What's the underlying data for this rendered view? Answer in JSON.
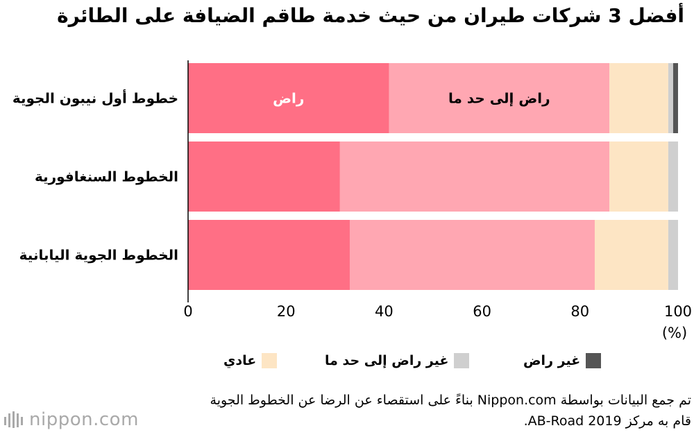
{
  "title": "أفضل 3 شركات طيران من حيث خدمة طاقم الضيافة على الطائرة",
  "chart_data": {
    "type": "bar",
    "orientation": "horizontal",
    "stacked": true,
    "title": "أفضل 3 شركات طيران من حيث خدمة طاقم الضيافة على الطائرة",
    "categories": [
      "خطوط أول نيبون الجوية",
      "الخطوط السنغافورية",
      "الخطوط الجوية اليابانية"
    ],
    "series": [
      {
        "name": "راض",
        "color": "#ff6f85",
        "values": [
          41,
          31,
          33
        ]
      },
      {
        "name": "راض إلى حد ما",
        "color": "#ffa7b2",
        "values": [
          45,
          55,
          50
        ]
      },
      {
        "name": "عادي",
        "color": "#fde5c4",
        "values": [
          12,
          12,
          15
        ]
      },
      {
        "name": "غير راض إلى حد ما",
        "color": "#cfcfcf",
        "values": [
          1,
          2,
          2
        ]
      },
      {
        "name": "غير راض",
        "color": "#555555",
        "values": [
          1,
          0,
          0
        ]
      }
    ],
    "in_bar_labels": [
      "راض",
      "راض إلى حد ما"
    ],
    "x_ticks": [
      "0",
      "20",
      "40",
      "60",
      "80",
      "100"
    ],
    "xlim": [
      0,
      100
    ],
    "xunit": "(%)",
    "legend": [
      {
        "name": "غير راض",
        "color": "#555555"
      },
      {
        "name": "غير راض إلى حد ما",
        "color": "#cfcfcf"
      },
      {
        "name": "عادي",
        "color": "#fde5c4"
      }
    ],
    "legend_placement": "bottom",
    "grid": false
  },
  "note": "تم جمع البيانات بواسطة Nippon.com بناءً على استقصاء عن الرضا عن الخطوط الجوية قام به مركز AB-Road 2019.",
  "logo": {
    "text": "nippon.com"
  }
}
